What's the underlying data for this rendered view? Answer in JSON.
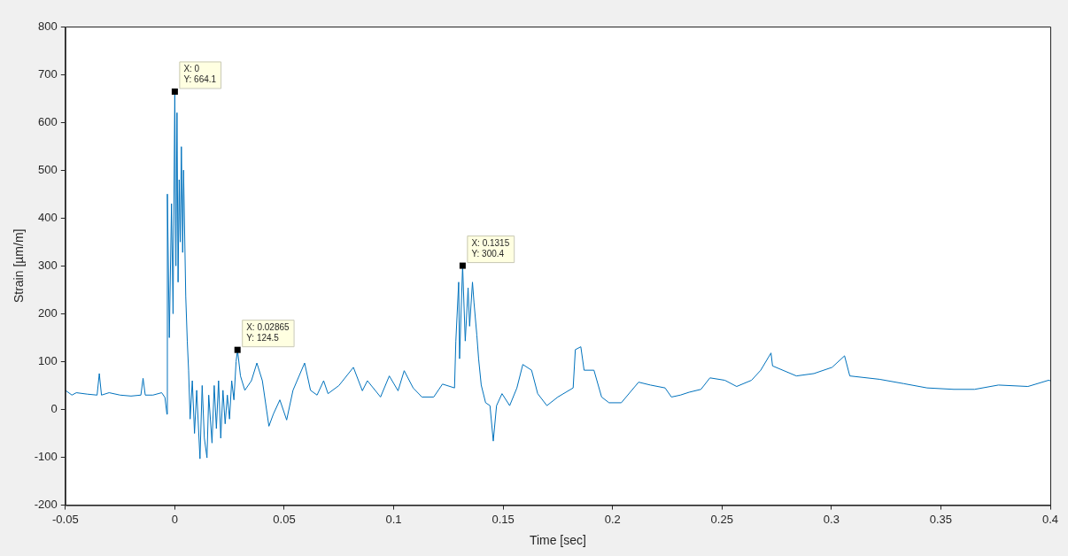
{
  "chart_data": {
    "type": "line",
    "xlabel": "Time [sec]",
    "ylabel": "Strain [µm/m]",
    "xlim": [
      -0.05,
      0.4
    ],
    "xticks": [
      -0.05,
      0,
      0.05,
      0.1,
      0.15,
      0.2,
      0.25,
      0.3,
      0.35,
      0.4
    ],
    "ylim": [
      -200,
      800
    ],
    "yticks": [
      -200,
      -100,
      0,
      100,
      200,
      300,
      400,
      500,
      600,
      700,
      800
    ],
    "grid": false,
    "legend": false,
    "annotations": [
      {
        "text": "X: 0\nY: 664.1",
        "x": 0,
        "y": 664.1
      },
      {
        "text": "X: 0.02865\nY: 124.5",
        "x": 0.02865,
        "y": 124.5
      },
      {
        "text": "X: 0.1315\nY: 300.4",
        "x": 0.1315,
        "y": 300.4
      }
    ],
    "series": [
      {
        "color": "#0072bd",
        "x": [
          -0.05,
          -0.047,
          -0.045,
          -0.04,
          -0.0355,
          -0.0345,
          -0.0335,
          -0.03,
          -0.025,
          -0.02,
          -0.0155,
          -0.0145,
          -0.0135,
          -0.01,
          -0.006,
          -0.0045,
          -0.0036,
          -0.0034,
          -0.0025,
          -0.0015,
          -0.0008,
          0,
          0.0005,
          0.001,
          0.0015,
          0.002,
          0.0025,
          0.003,
          0.0036,
          0.004,
          0.005,
          0.0057,
          0.0063,
          0.007,
          0.008,
          0.009,
          0.01,
          0.0115,
          0.0125,
          0.0135,
          0.0147,
          0.0155,
          0.017,
          0.018,
          0.019,
          0.02,
          0.021,
          0.022,
          0.023,
          0.024,
          0.025,
          0.026,
          0.027,
          0.028,
          0.02865,
          0.03,
          0.032,
          0.035,
          0.0375,
          0.04,
          0.043,
          0.045,
          0.048,
          0.0511,
          0.054,
          0.0593,
          0.062,
          0.065,
          0.068,
          0.07,
          0.075,
          0.0816,
          0.0857,
          0.088,
          0.094,
          0.098,
          0.102,
          0.1048,
          0.1089,
          0.1129,
          0.1183,
          0.1223,
          0.1278,
          0.1284,
          0.1297,
          0.1301,
          0.1315,
          0.1327,
          0.134,
          0.1347,
          0.136,
          0.1367,
          0.138,
          0.1388,
          0.14,
          0.142,
          0.144,
          0.1455,
          0.147,
          0.1495,
          0.153,
          0.1563,
          0.159,
          0.163,
          0.1658,
          0.17,
          0.175,
          0.182,
          0.183,
          0.1855,
          0.187,
          0.1915,
          0.195,
          0.1984,
          0.204,
          0.2119,
          0.2173,
          0.224,
          0.2269,
          0.231,
          0.235,
          0.2404,
          0.2445,
          0.2513,
          0.2567,
          0.2635,
          0.2677,
          0.2724,
          0.2731,
          0.284,
          0.292,
          0.3003,
          0.306,
          0.3084,
          0.322,
          0.333,
          0.3437,
          0.3559,
          0.3654,
          0.3763,
          0.3898,
          0.3992,
          0.4
        ],
        "values": [
          40,
          30,
          35,
          32,
          30,
          75,
          30,
          35,
          30,
          28,
          30,
          65,
          30,
          30,
          35,
          25,
          -10,
          450,
          150,
          430,
          200,
          664.1,
          300,
          620,
          266,
          480,
          350,
          549,
          328,
          500,
          236,
          143,
          82,
          -20,
          60,
          -50,
          40,
          -103,
          50,
          -60,
          -101,
          30,
          -70,
          50,
          -40,
          60,
          -60,
          40,
          -30,
          30,
          -20,
          60,
          20,
          100,
          124.5,
          70,
          40,
          60,
          97,
          60,
          -35,
          -10,
          20,
          -22,
          40,
          97,
          40,
          30,
          60,
          33,
          50,
          88,
          39,
          60,
          26,
          70,
          39,
          81,
          45,
          26,
          26,
          53,
          45,
          143,
          266,
          106,
          300.4,
          143,
          254,
          174,
          266,
          223,
          155,
          106,
          51,
          14,
          8,
          -66,
          8,
          33,
          8,
          45,
          94,
          82,
          33,
          8,
          26,
          45,
          125,
          131,
          82,
          82,
          26,
          14,
          14,
          57,
          51,
          45,
          26,
          30,
          36,
          42,
          66,
          61,
          48,
          61,
          82,
          118,
          91,
          70,
          75,
          88,
          112,
          70,
          63,
          54,
          45,
          42,
          42,
          51,
          48,
          61,
          60
        ]
      }
    ]
  }
}
